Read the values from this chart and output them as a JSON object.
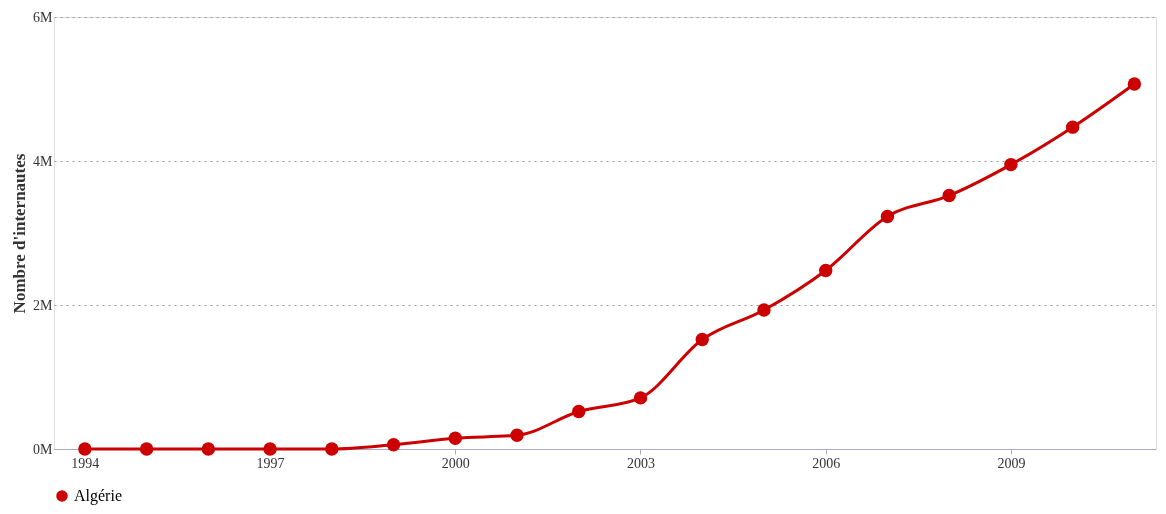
{
  "chart_data": {
    "type": "line",
    "ylabel": "Nombre d'internautes",
    "x": [
      1994,
      1995,
      1996,
      1997,
      1998,
      1999,
      2000,
      2001,
      2002,
      2003,
      2004,
      2005,
      2006,
      2007,
      2008,
      2009,
      2010,
      2011
    ],
    "series": [
      {
        "name": "Algérie",
        "color": "#cc0000",
        "values": [
          0,
          0,
          0,
          0,
          0,
          60000,
          150000,
          190000,
          520000,
          710000,
          1520000,
          1930000,
          2480000,
          3230000,
          3520000,
          3950000,
          4470000,
          5070000
        ]
      }
    ],
    "xlim": [
      1993.5,
      2011.35
    ],
    "xticks": [
      1994,
      1997,
      2000,
      2003,
      2006,
      2009
    ],
    "ylim": [
      0,
      6000000
    ],
    "yticks": [
      {
        "value": 0,
        "label": "0M"
      },
      {
        "value": 2000000,
        "label": "2M"
      },
      {
        "value": 4000000,
        "label": "4M"
      },
      {
        "value": 6000000,
        "label": "6M"
      }
    ],
    "grid": "y",
    "legend": "bottom",
    "marker": "circle",
    "line_style": "solid"
  }
}
